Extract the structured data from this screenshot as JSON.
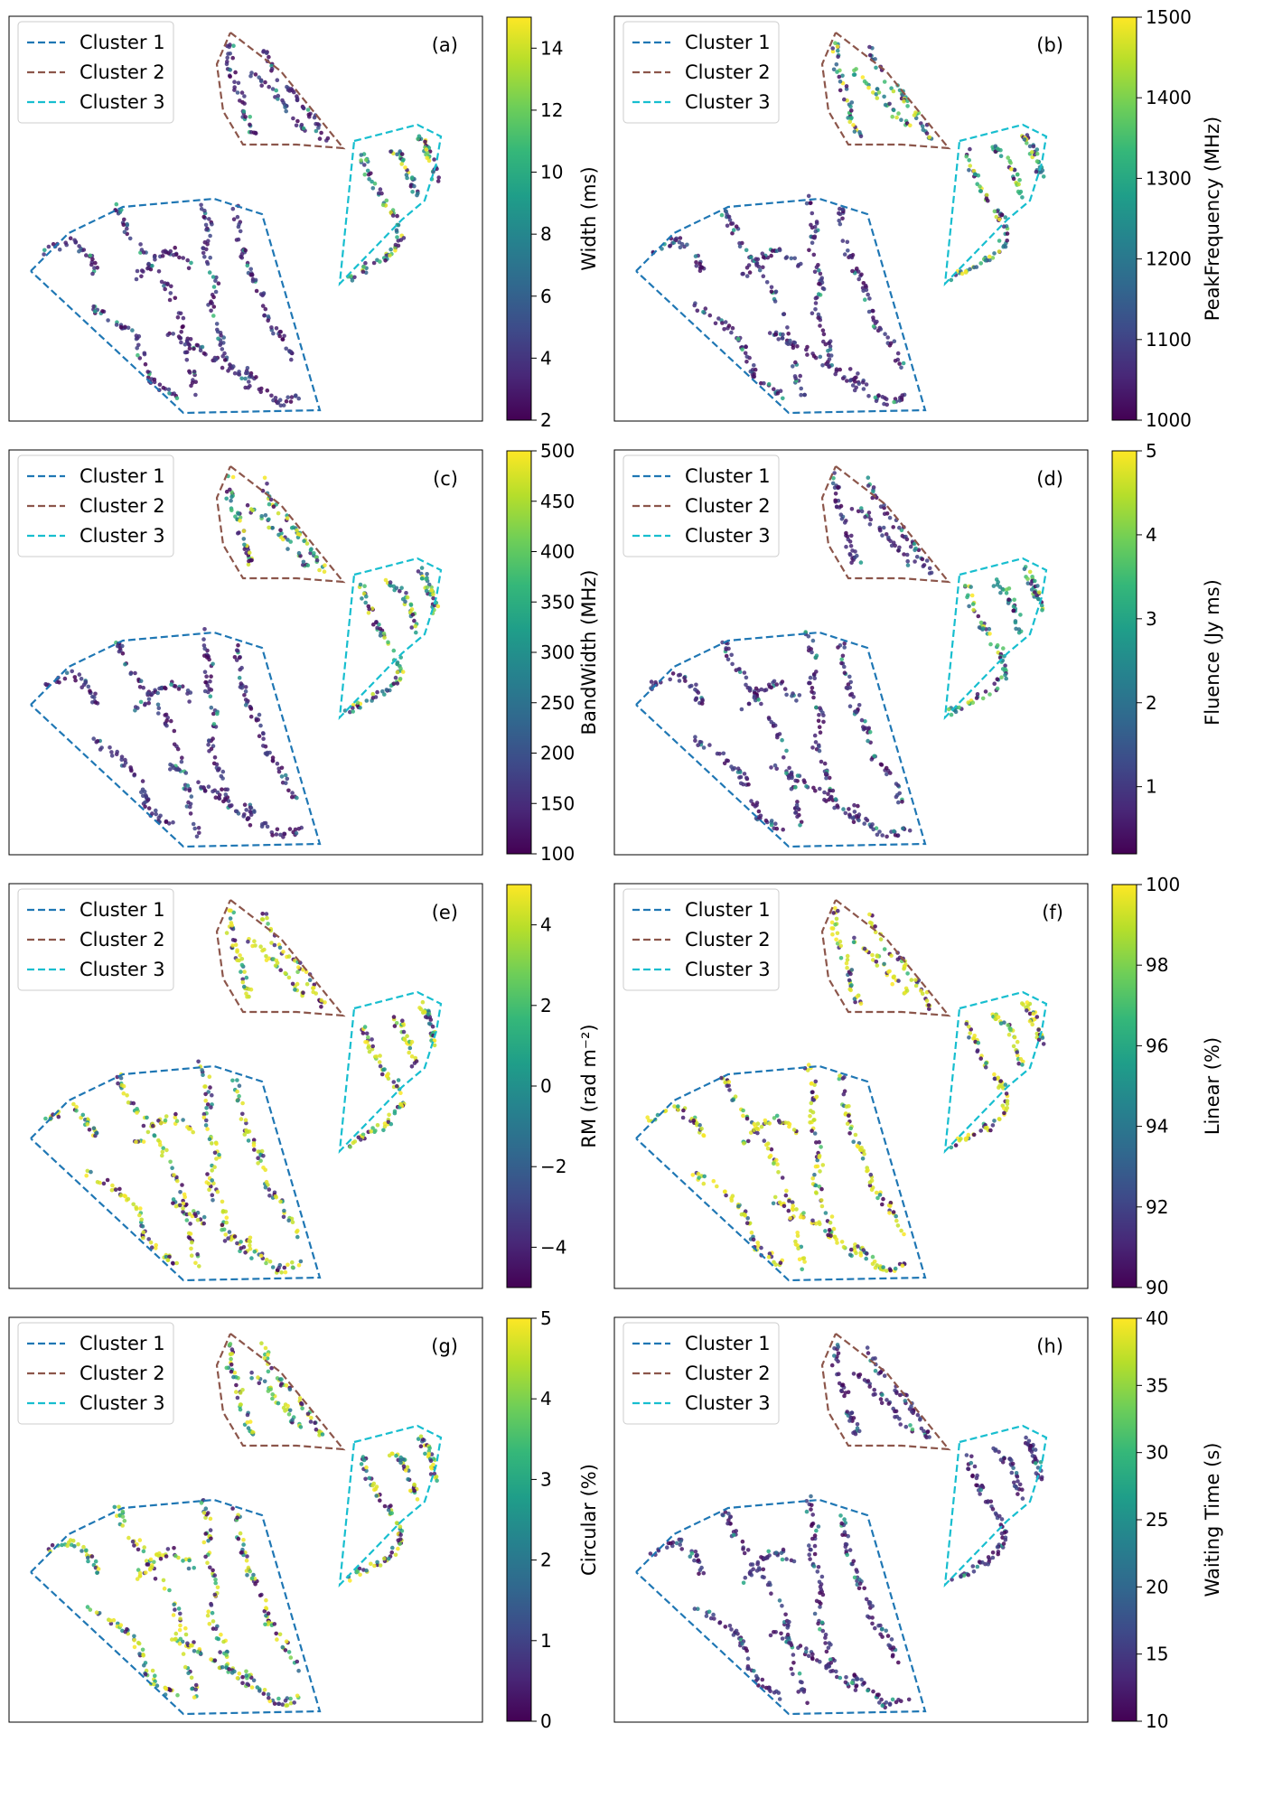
{
  "figure": {
    "legend_labels": [
      "Cluster 1",
      "Cluster 2",
      "Cluster 3"
    ]
  },
  "cluster_colors": [
    "#1f77b4",
    "#8c564b",
    "#17becf"
  ],
  "colormap": [
    "#440154",
    "#482878",
    "#3e4a89",
    "#31688e",
    "#26828e",
    "#1f9e89",
    "#35b779",
    "#6ece58",
    "#b5de2b",
    "#fde725"
  ],
  "chart_data": [
    {
      "type": "scatter",
      "panel_label": "(a)",
      "colorbar_label": "Width (ms)",
      "clim": [
        2,
        15
      ],
      "ticks": [
        2,
        4,
        6,
        8,
        10,
        12,
        14
      ],
      "tick_labels": [
        "2",
        "4",
        "6",
        "8",
        "10",
        "12",
        "14"
      ],
      "low_clusters": [
        1,
        2
      ],
      "bias": 0.12
    },
    {
      "type": "scatter",
      "panel_label": "(b)",
      "colorbar_label": "PeakFrequency (MHz)",
      "clim": [
        1000,
        1500
      ],
      "ticks": [
        1000,
        1100,
        1200,
        1300,
        1400,
        1500
      ],
      "tick_labels": [
        "1000",
        "1100",
        "1200",
        "1300",
        "1400",
        "1500"
      ],
      "low_clusters": [
        1
      ],
      "bias": 0.15
    },
    {
      "type": "scatter",
      "panel_label": "(c)",
      "colorbar_label": "BandWidth (MHz)",
      "clim": [
        100,
        500
      ],
      "ticks": [
        100,
        150,
        200,
        250,
        300,
        350,
        400,
        450,
        500
      ],
      "tick_labels": [
        "100",
        "150",
        "200",
        "250",
        "300",
        "350",
        "400",
        "450",
        "500"
      ],
      "low_clusters": [
        1
      ],
      "bias": 0.2
    },
    {
      "type": "scatter",
      "panel_label": "(d)",
      "colorbar_label": "Fluence (Jy ms)",
      "clim": [
        0.2,
        5
      ],
      "ticks": [
        1,
        2,
        3,
        4,
        5
      ],
      "tick_labels": [
        "1",
        "2",
        "3",
        "4",
        "5"
      ],
      "low_clusters": [
        1,
        2
      ],
      "bias": 0.08
    },
    {
      "type": "scatter",
      "panel_label": "(e)",
      "colorbar_label": "RM (rad m⁻²)",
      "clim": [
        -5,
        5
      ],
      "ticks": [
        -4,
        -2,
        0,
        2,
        4
      ],
      "tick_labels": [
        "−4",
        "−2",
        "0",
        "2",
        "4"
      ],
      "low_clusters": [],
      "bias": 0.5
    },
    {
      "type": "scatter",
      "panel_label": "(f)",
      "colorbar_label": "Linear (%)",
      "clim": [
        90,
        100
      ],
      "ticks": [
        90,
        92,
        94,
        96,
        98,
        100
      ],
      "tick_labels": [
        "90",
        "92",
        "94",
        "96",
        "98",
        "100"
      ],
      "low_clusters": [],
      "bias": 0.6
    },
    {
      "type": "scatter",
      "panel_label": "(g)",
      "colorbar_label": "Circular (%)",
      "clim": [
        0,
        5
      ],
      "ticks": [
        0,
        1,
        2,
        3,
        4,
        5
      ],
      "tick_labels": [
        "0",
        "1",
        "2",
        "3",
        "4",
        "5"
      ],
      "low_clusters": [],
      "bias": 0.4
    },
    {
      "type": "scatter",
      "panel_label": "(h)",
      "colorbar_label": "Waiting Time (s)",
      "clim": [
        10,
        40
      ],
      "ticks": [
        10,
        15,
        20,
        25,
        30,
        35,
        40
      ],
      "tick_labels": [
        "10",
        "15",
        "20",
        "25",
        "30",
        "35",
        "40"
      ],
      "low_clusters": [
        1,
        2,
        3
      ],
      "bias": 0.2
    }
  ]
}
